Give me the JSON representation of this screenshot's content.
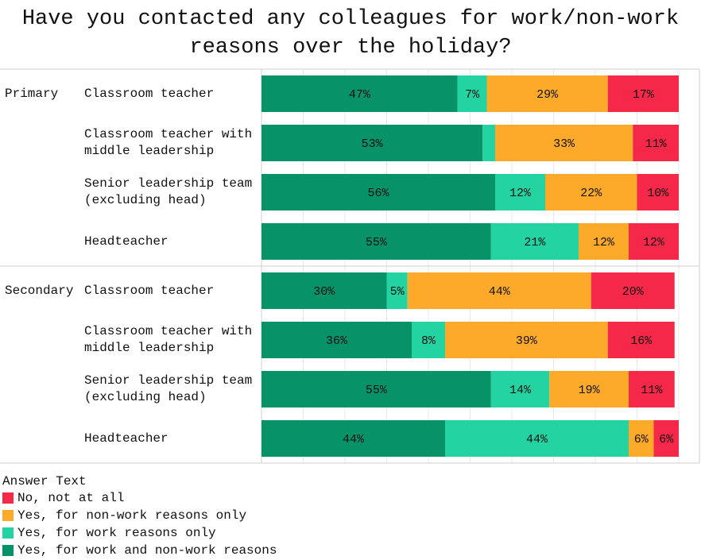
{
  "chart_data": {
    "type": "stacked_bar_horizontal",
    "title": "Have you contacted any colleagues for work/non-work reasons over the holiday?",
    "groups": [
      "Primary",
      "Secondary"
    ],
    "categories": [
      "Classroom teacher",
      "Classroom teacher with middle leadership",
      "Senior leadership team (excluding head)",
      "Headteacher",
      "Classroom teacher",
      "Classroom teacher with middle leadership",
      "Senior leadership team (excluding head)",
      "Headteacher"
    ],
    "series": [
      {
        "name": "Yes, for work and non-work reasons",
        "color": "#079268",
        "values": [
          47,
          53,
          56,
          55,
          30,
          36,
          55,
          44
        ],
        "value_labels": [
          "47%",
          "53%",
          "56%",
          "55%",
          "30%",
          "36%",
          "55%",
          "44%"
        ]
      },
      {
        "name": "Yes, for work reasons only",
        "color": "#24d3a2",
        "values": [
          7,
          3,
          12,
          21,
          5,
          8,
          14,
          44
        ],
        "value_labels": [
          "7%",
          null,
          "12%",
          "21%",
          "5%",
          "8%",
          "14%",
          "44%"
        ]
      },
      {
        "name": "Yes, for non-work reasons only",
        "color": "#fdaa2b",
        "values": [
          29,
          33,
          22,
          12,
          44,
          39,
          19,
          6
        ],
        "value_labels": [
          "29%",
          "33%",
          "22%",
          "12%",
          "44%",
          "39%",
          "19%",
          "6%"
        ]
      },
      {
        "name": "No, not at all",
        "color": "#f5284a",
        "values": [
          17,
          11,
          10,
          12,
          20,
          16,
          11,
          6
        ],
        "value_labels": [
          "17%",
          "11%",
          "10%",
          "12%",
          "20%",
          "16%",
          "11%",
          "6%"
        ]
      }
    ],
    "legend_title": "Answer Text",
    "xlim": [
      0,
      100
    ],
    "xticks": [
      0,
      10,
      20,
      30,
      40,
      50,
      60,
      70,
      80,
      90,
      100
    ],
    "grid": true
  }
}
